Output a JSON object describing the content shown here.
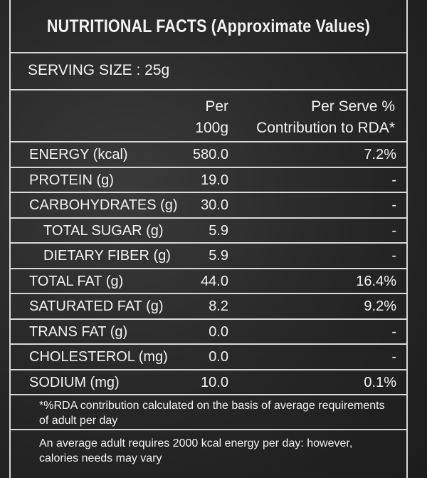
{
  "title": "NUTRITIONAL FACTS (Approximate Values)",
  "serving_size": "SERVING SIZE : 25g",
  "header": {
    "per_line1": "Per",
    "per_line2": "100g",
    "rda_line1": "Per Serve %",
    "rda_line2": "Contribution to RDA*"
  },
  "rows": [
    {
      "name": "ENERGY (kcal)",
      "per100g": "580.0",
      "rda": "7.2%"
    },
    {
      "name": "PROTEIN (g)",
      "per100g": "19.0",
      "rda": "-"
    },
    {
      "name": "CARBOHYDRATES (g)",
      "per100g": "30.0",
      "rda": "-"
    },
    {
      "name": "TOTAL SUGAR (g)",
      "per100g": "5.9",
      "rda": "-"
    },
    {
      "name": "DIETARY FIBER (g)",
      "per100g": "5.9",
      "rda": "-"
    },
    {
      "name": "TOTAL FAT (g)",
      "per100g": "44.0",
      "rda": "16.4%"
    },
    {
      "name": "SATURATED FAT (g)",
      "per100g": "8.2",
      "rda": "9.2%"
    },
    {
      "name": "TRANS FAT (g)",
      "per100g": "0.0",
      "rda": "-"
    },
    {
      "name": "CHOLESTEROL (mg)",
      "per100g": "0.0",
      "rda": "-"
    },
    {
      "name": "SODIUM (mg)",
      "per100g": "10.0",
      "rda": "0.1%"
    }
  ],
  "notes": {
    "rda_note": "*%RDA contribution calculated on the basis of average requirements of adult per day",
    "energy_note": "An average adult requires 2000 kcal energy per day: however, calories needs may vary"
  }
}
